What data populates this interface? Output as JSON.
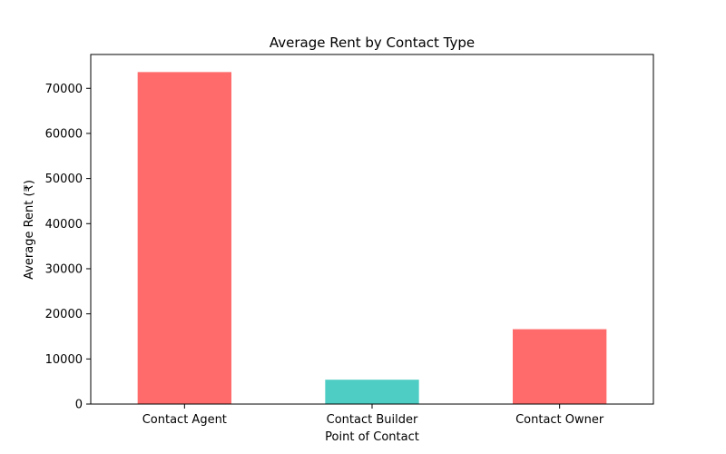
{
  "chart_data": {
    "type": "bar",
    "title": "Average Rent by Contact Type",
    "xlabel": "Point of Contact",
    "ylabel": "Average Rent (₹)",
    "categories": [
      "Contact Agent",
      "Contact Builder",
      "Contact Owner"
    ],
    "values": [
      73600,
      5400,
      16600
    ],
    "bar_colors": [
      "#ff6b6b",
      "#4ecdc4",
      "#ff6b6b"
    ],
    "ylim": [
      0,
      77500
    ],
    "yticks": [
      0,
      10000,
      20000,
      30000,
      40000,
      50000,
      60000,
      70000
    ],
    "ytick_labels": [
      "0",
      "10000",
      "20000",
      "30000",
      "40000",
      "50000",
      "60000",
      "70000"
    ],
    "grid": false,
    "legend": "none"
  }
}
